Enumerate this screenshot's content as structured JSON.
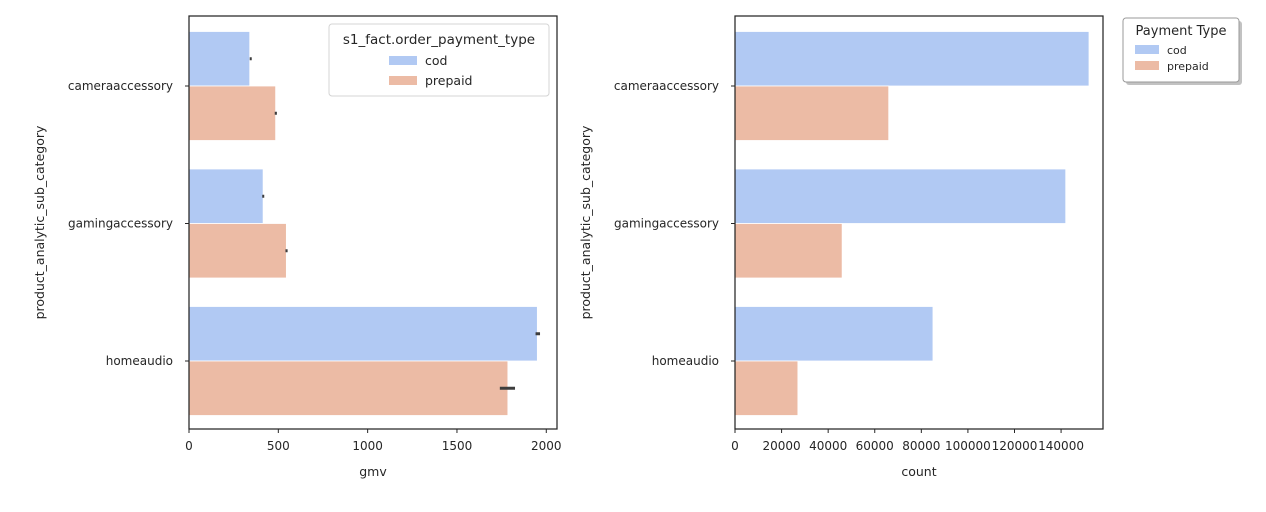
{
  "colors": {
    "cod": "#b1c9f3",
    "prepaid": "#ecbba5",
    "axis": "#262626",
    "errorbar": "#3d3d3d"
  },
  "chart_data": [
    {
      "type": "bar",
      "orientation": "horizontal",
      "title": "",
      "xlabel": "gmv",
      "ylabel": "product_analytic_sub_category",
      "categories": [
        "cameraaccessory",
        "gamingaccessory",
        "homeaudio"
      ],
      "xlim": [
        0,
        2060
      ],
      "xticks": [
        0,
        500,
        1000,
        1500,
        2000
      ],
      "xtick_labels": [
        "0",
        "500",
        "1000",
        "1500",
        "2000"
      ],
      "grid": false,
      "legend": {
        "title": "s1_fact.order_payment_type",
        "position": "top-right",
        "entries": [
          "cod",
          "prepaid"
        ]
      },
      "series": [
        {
          "name": "cod",
          "values": [
            340,
            415,
            1950
          ],
          "error": [
            [
              340,
              340
            ],
            [
              410,
              420
            ],
            [
              1940,
              1965
            ]
          ]
        },
        {
          "name": "prepaid",
          "values": [
            485,
            545,
            1785
          ],
          "error": [
            [
              480,
              492
            ],
            [
              540,
              552
            ],
            [
              1740,
              1825
            ]
          ]
        }
      ]
    },
    {
      "type": "bar",
      "orientation": "horizontal",
      "title": "",
      "xlabel": "count",
      "ylabel": "product_analytic_sub_category",
      "categories": [
        "cameraaccessory",
        "gamingaccessory",
        "homeaudio"
      ],
      "xlim": [
        0,
        158000
      ],
      "xticks": [
        0,
        20000,
        40000,
        60000,
        80000,
        100000,
        120000,
        140000
      ],
      "xtick_labels": [
        "0",
        "20000",
        "40000",
        "60000",
        "80000",
        "100000",
        "120000",
        "140000"
      ],
      "grid": false,
      "legend": {
        "title": "Payment Type",
        "position": "outside-top-right",
        "entries": [
          "cod",
          "prepaid"
        ]
      },
      "series": [
        {
          "name": "cod",
          "values": [
            152000,
            142000,
            85000
          ]
        },
        {
          "name": "prepaid",
          "values": [
            66000,
            46000,
            27000
          ]
        }
      ]
    }
  ]
}
